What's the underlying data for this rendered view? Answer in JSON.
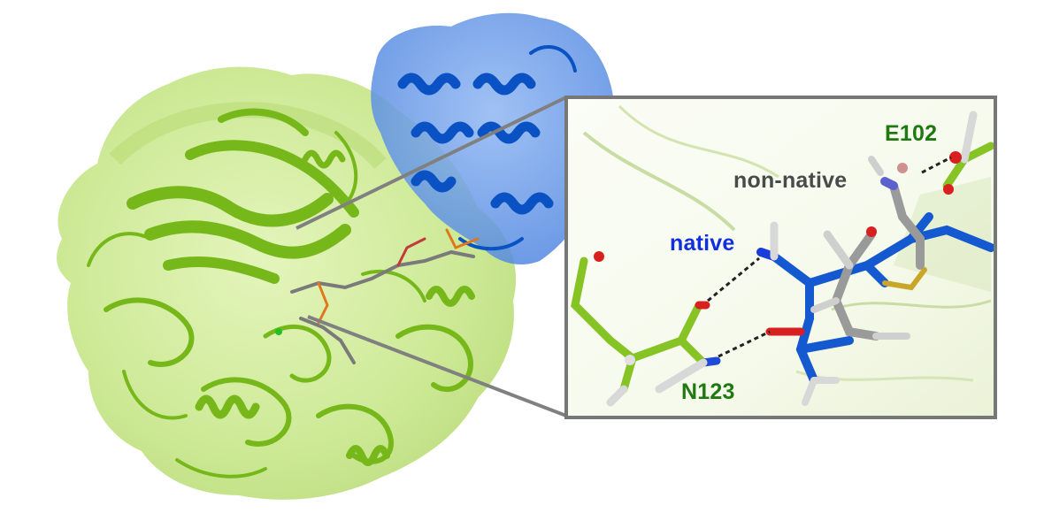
{
  "labels": {
    "e102": "E102",
    "non_native": "non-native",
    "native": "native",
    "n123": "N123"
  },
  "colors": {
    "receptor_green": "#7fc21f",
    "receptor_surface": "#c8e98a",
    "ligand_blue": "#0d5bd1",
    "ligand_surface": "#6f9fe8",
    "label_green": "#1e7a10",
    "label_blue": "#1030e0",
    "label_gray": "#4a4a4a",
    "inset_border": "#777777"
  }
}
